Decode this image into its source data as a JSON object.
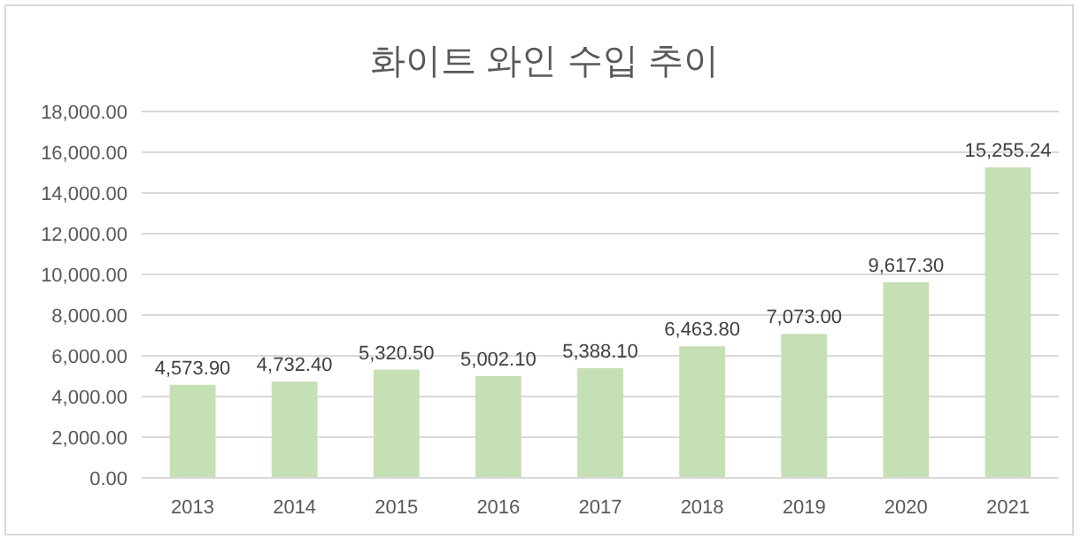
{
  "chart_data": {
    "type": "bar",
    "title": "화이트 와인 수입 추이",
    "categories": [
      "2013",
      "2014",
      "2015",
      "2016",
      "2017",
      "2018",
      "2019",
      "2020",
      "2021"
    ],
    "values": [
      4573.9,
      4732.4,
      5320.5,
      5002.1,
      5388.1,
      6463.8,
      7073.0,
      9617.3,
      15255.24
    ],
    "value_labels": [
      "4,573.90",
      "4,732.40",
      "5,320.50",
      "5,002.10",
      "5,388.10",
      "6,463.80",
      "7,073.00",
      "9,617.30",
      "15,255.24"
    ],
    "color": "#c5e0b4",
    "ylim": [
      0,
      18000
    ],
    "yticks": [
      {
        "value": 0,
        "label": "0.00"
      },
      {
        "value": 2000,
        "label": "2,000.00"
      },
      {
        "value": 4000,
        "label": "4,000.00"
      },
      {
        "value": 6000,
        "label": "6,000.00"
      },
      {
        "value": 8000,
        "label": "8,000.00"
      },
      {
        "value": 10000,
        "label": "10,000.00"
      },
      {
        "value": 12000,
        "label": "12,000.00"
      },
      {
        "value": 14000,
        "label": "14,000.00"
      },
      {
        "value": 16000,
        "label": "16,000.00"
      },
      {
        "value": 18000,
        "label": "18,000.00"
      }
    ],
    "grid": "y"
  }
}
